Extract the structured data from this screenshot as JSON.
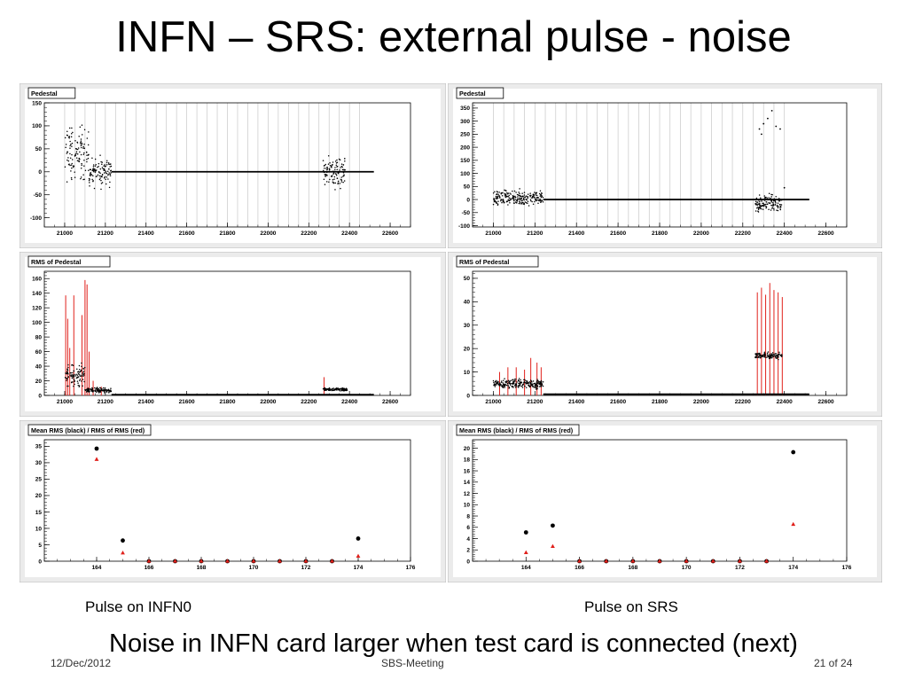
{
  "slide": {
    "title": "INFN – SRS: external pulse - noise",
    "caption_left": "Pulse on INFN0",
    "caption_right": "Pulse on SRS",
    "bottom_text": "Noise in INFN card larger when test card is connected (next)",
    "footer_date": "12/Dec/2012",
    "footer_center": "SBS-Meeting",
    "footer_page": "21 of 24"
  },
  "colors": {
    "mark": "#000000",
    "error": "#e0201b",
    "frame_bg": "#ebebeb",
    "pad_bg": "#ffffff",
    "grid": "#c8c8c8"
  },
  "chart_data": [
    {
      "id": "left_pedestal",
      "type": "scatter",
      "title": "Pedestal",
      "xlim": [
        20900,
        22700
      ],
      "ylim": [
        -120,
        150
      ],
      "xticks": [
        21000,
        21200,
        21400,
        21600,
        21800,
        22000,
        22200,
        22400,
        22600
      ],
      "xticklabels": [
        "21000",
        "21200",
        "21400",
        "21600",
        "21800",
        "22000",
        "22200",
        "22400",
        "22600"
      ],
      "yticks": [
        -100,
        -50,
        0,
        50,
        100,
        150
      ],
      "vgrid": [
        21000,
        21050,
        21100,
        21150,
        21200,
        21250,
        21300,
        21350,
        21400,
        21450,
        21500,
        21550,
        21600,
        21650,
        21700,
        21750,
        21800,
        21850,
        21900,
        21950,
        22000,
        22050,
        22100,
        22150,
        22200,
        22250,
        22300,
        22350,
        22400,
        22450
      ],
      "clusters": [
        {
          "x": [
            21000,
            21120
          ],
          "center": 40,
          "spread": 55
        },
        {
          "x": [
            21120,
            21230
          ],
          "center": 0,
          "spread": 30
        },
        {
          "x": [
            22270,
            22380
          ],
          "center": 0,
          "spread": 30
        }
      ],
      "lines": [
        {
          "x": [
            21230,
            22520
          ],
          "y": 0
        }
      ]
    },
    {
      "id": "left_rms",
      "type": "scatter",
      "title": "RMS of Pedestal",
      "xlim": [
        20900,
        22700
      ],
      "ylim": [
        0,
        170
      ],
      "xticks": [
        21000,
        21200,
        21400,
        21600,
        21800,
        22000,
        22200,
        22400,
        22600
      ],
      "xticklabels": [
        "21000",
        "21200",
        "21400",
        "21600",
        "21800",
        "22000",
        "22200",
        "22400",
        "22600"
      ],
      "yticks": [
        0,
        20,
        40,
        60,
        80,
        100,
        120,
        140,
        160
      ],
      "vgrid": [],
      "clusters": [
        {
          "x": [
            21000,
            21100
          ],
          "center": 28,
          "spread": 14
        },
        {
          "x": [
            21100,
            21230
          ],
          "center": 7,
          "spread": 3
        },
        {
          "x": [
            22270,
            22390
          ],
          "center": 8,
          "spread": 2
        }
      ],
      "lines": [
        {
          "x": [
            21230,
            22520
          ],
          "y": 1
        }
      ],
      "error_spikes": [
        [
          21005,
          137
        ],
        [
          21015,
          105
        ],
        [
          21025,
          65
        ],
        [
          21045,
          137
        ],
        [
          21085,
          110
        ],
        [
          21100,
          158
        ],
        [
          21110,
          152
        ],
        [
          21120,
          60
        ],
        [
          21140,
          20
        ],
        [
          21180,
          12
        ],
        [
          22275,
          25
        ]
      ]
    },
    {
      "id": "left_mean",
      "type": "scatter",
      "title": "Mean RMS (black) / RMS of RMS (red)",
      "xlim": [
        162,
        176
      ],
      "ylim": [
        0,
        37
      ],
      "xticks": [
        164,
        166,
        168,
        170,
        172,
        174,
        176
      ],
      "xticklabels": [
        "164",
        "166",
        "168",
        "170",
        "172",
        "174",
        "176"
      ],
      "yticks": [
        0,
        5,
        10,
        15,
        20,
        25,
        30,
        35
      ],
      "vgrid": [],
      "points_black": [
        [
          164,
          34.3
        ],
        [
          165,
          6.3
        ],
        [
          166,
          0
        ],
        [
          167,
          0
        ],
        [
          168,
          0
        ],
        [
          169,
          0
        ],
        [
          170,
          0
        ],
        [
          171,
          0
        ],
        [
          172,
          0
        ],
        [
          173,
          0
        ],
        [
          174,
          6.9
        ]
      ],
      "points_red": [
        [
          164,
          31
        ],
        [
          165,
          2.5
        ],
        [
          166,
          0
        ],
        [
          167,
          0
        ],
        [
          168,
          0
        ],
        [
          169,
          0
        ],
        [
          170,
          0
        ],
        [
          171,
          0
        ],
        [
          172,
          0
        ],
        [
          173,
          0
        ],
        [
          174,
          1.5
        ]
      ]
    },
    {
      "id": "right_pedestal",
      "type": "scatter",
      "title": "Pedestal",
      "xlim": [
        20900,
        22700
      ],
      "ylim": [
        -105,
        370
      ],
      "xticks": [
        21000,
        21200,
        21400,
        21600,
        21800,
        22000,
        22200,
        22400,
        22600
      ],
      "xticklabels": [
        "21000",
        "21200",
        "21400",
        "21600",
        "21800",
        "22000",
        "22200",
        "22400",
        "22600"
      ],
      "yticks": [
        -100,
        -50,
        0,
        50,
        100,
        150,
        200,
        250,
        300,
        350
      ],
      "vgrid": [
        21000,
        21050,
        21100,
        21150,
        21200,
        21250,
        21300,
        21350,
        21400,
        21450,
        21500,
        21550,
        21600,
        21650,
        21700,
        21750,
        21800,
        21850,
        21900,
        21950,
        22000,
        22050,
        22100,
        22150,
        22200,
        22250,
        22300,
        22350,
        22400
      ],
      "clusters": [
        {
          "x": [
            21000,
            21240
          ],
          "center": 5,
          "spread": 28
        },
        {
          "x": [
            22260,
            22390
          ],
          "center": -15,
          "spread": 30
        }
      ],
      "lines": [
        {
          "x": [
            21240,
            22520
          ],
          "y": 0
        }
      ],
      "extra_points": [
        [
          22280,
          270
        ],
        [
          22290,
          250
        ],
        [
          22300,
          290
        ],
        [
          22320,
          310
        ],
        [
          22340,
          340
        ],
        [
          22360,
          280
        ],
        [
          22380,
          270
        ],
        [
          22400,
          45
        ]
      ]
    },
    {
      "id": "right_rms",
      "type": "scatter",
      "title": "RMS of Pedestal",
      "xlim": [
        20900,
        22700
      ],
      "ylim": [
        0,
        53
      ],
      "xticks": [
        21000,
        21200,
        21400,
        21600,
        21800,
        22000,
        22200,
        22400,
        22600
      ],
      "xticklabels": [
        "21000",
        "21200",
        "21400",
        "21600",
        "21800",
        "22000",
        "22200",
        "22400",
        "22600"
      ],
      "yticks": [
        0,
        10,
        20,
        30,
        40,
        50
      ],
      "vgrid": [],
      "clusters": [
        {
          "x": [
            21000,
            21240
          ],
          "center": 5,
          "spread": 2
        },
        {
          "x": [
            22260,
            22390
          ],
          "center": 17,
          "spread": 1.3
        }
      ],
      "lines": [
        {
          "x": [
            21240,
            22520
          ],
          "y": 0.5
        }
      ],
      "error_spikes": [
        [
          21030,
          10
        ],
        [
          21070,
          12
        ],
        [
          21110,
          12
        ],
        [
          21150,
          11
        ],
        [
          21180,
          16
        ],
        [
          21210,
          14
        ],
        [
          21230,
          12
        ],
        [
          22270,
          44
        ],
        [
          22290,
          46
        ],
        [
          22310,
          43
        ],
        [
          22330,
          48
        ],
        [
          22350,
          45
        ],
        [
          22370,
          44
        ],
        [
          22390,
          42
        ]
      ]
    },
    {
      "id": "right_mean",
      "type": "scatter",
      "title": "Mean RMS (black) / RMS of RMS (red)",
      "xlim": [
        162,
        176
      ],
      "ylim": [
        0,
        21.5
      ],
      "xticks": [
        164,
        166,
        168,
        170,
        172,
        174,
        176
      ],
      "xticklabels": [
        "164",
        "166",
        "168",
        "170",
        "172",
        "174",
        "176"
      ],
      "yticks": [
        0,
        2,
        4,
        6,
        8,
        10,
        12,
        14,
        16,
        18,
        20
      ],
      "vgrid": [],
      "points_black": [
        [
          164,
          5.1
        ],
        [
          165,
          6.3
        ],
        [
          166,
          0
        ],
        [
          167,
          0
        ],
        [
          168,
          0
        ],
        [
          169,
          0
        ],
        [
          170,
          0
        ],
        [
          171,
          0
        ],
        [
          172,
          0
        ],
        [
          173,
          0
        ],
        [
          174,
          19.3
        ]
      ],
      "points_red": [
        [
          164,
          1.5
        ],
        [
          165,
          2.6
        ],
        [
          166,
          0
        ],
        [
          167,
          0
        ],
        [
          168,
          0
        ],
        [
          169,
          0
        ],
        [
          170,
          0
        ],
        [
          171,
          0
        ],
        [
          172,
          0
        ],
        [
          173,
          0
        ],
        [
          174,
          6.5
        ]
      ]
    }
  ]
}
